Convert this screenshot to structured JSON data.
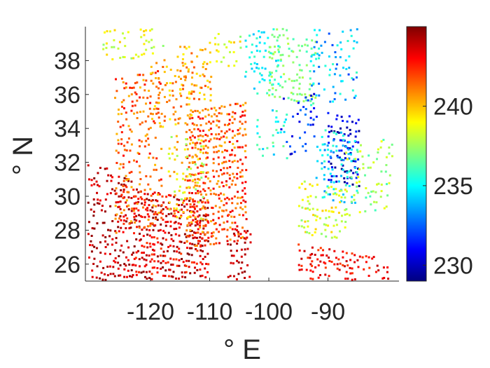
{
  "chart_data": {
    "type": "scatter",
    "title": "",
    "xlabel": "° E",
    "ylabel": "° N",
    "xlim": [
      -131,
      -78
    ],
    "ylim": [
      25,
      40
    ],
    "xticks": [
      {
        "value": -120,
        "label": "-120"
      },
      {
        "value": -110,
        "label": "-110"
      },
      {
        "value": -100,
        "label": "-100"
      },
      {
        "value": -90,
        "label": "-90"
      }
    ],
    "yticks": [
      {
        "value": 26,
        "label": "26"
      },
      {
        "value": 28,
        "label": "28"
      },
      {
        "value": 30,
        "label": "30"
      },
      {
        "value": 32,
        "label": "32"
      },
      {
        "value": 34,
        "label": "34"
      },
      {
        "value": 36,
        "label": "36"
      },
      {
        "value": 38,
        "label": "38"
      }
    ],
    "colorbar": {
      "colormap": "jet",
      "range": [
        229,
        245
      ],
      "ticks": [
        {
          "value": 230,
          "label": "230"
        },
        {
          "value": 235,
          "label": "235"
        },
        {
          "value": 240,
          "label": "240"
        }
      ]
    },
    "grid": false,
    "marker": "square",
    "clusters": [
      {
        "lon": [
          -123,
          -110
        ],
        "lat": [
          25,
          30.5
        ],
        "value": [
          242,
          245
        ],
        "density": 0.85
      },
      {
        "lon": [
          -114,
          -104
        ],
        "lat": [
          27,
          35
        ],
        "value": [
          240,
          243.5
        ],
        "density": 0.75
      },
      {
        "lon": [
          -131,
          -123
        ],
        "lat": [
          25,
          32
        ],
        "value": [
          243,
          245
        ],
        "density": 0.5
      },
      {
        "lon": [
          -126,
          -118
        ],
        "lat": [
          28,
          37
        ],
        "value": [
          240,
          243
        ],
        "density": 0.45
      },
      {
        "lon": [
          -117,
          -111
        ],
        "lat": [
          29,
          34
        ],
        "value": [
          237,
          241
        ],
        "density": 0.4
      },
      {
        "lon": [
          -120,
          -113
        ],
        "lat": [
          34,
          38
        ],
        "value": [
          239,
          242
        ],
        "density": 0.35
      },
      {
        "lon": [
          -115,
          -110
        ],
        "lat": [
          36,
          39
        ],
        "value": [
          239,
          242
        ],
        "density": 0.55
      },
      {
        "lon": [
          -128,
          -118
        ],
        "lat": [
          38,
          40
        ],
        "value": [
          237,
          240
        ],
        "density": 0.45
      },
      {
        "lon": [
          -110,
          -105
        ],
        "lat": [
          38,
          40
        ],
        "value": [
          237,
          240
        ],
        "density": 0.3
      },
      {
        "lon": [
          -104,
          -98
        ],
        "lat": [
          36,
          40
        ],
        "value": [
          234,
          236
        ],
        "density": 0.35
      },
      {
        "lon": [
          -100,
          -92
        ],
        "lat": [
          36,
          40
        ],
        "value": [
          236,
          238
        ],
        "density": 0.45
      },
      {
        "lon": [
          -93,
          -85
        ],
        "lat": [
          35.5,
          40
        ],
        "value": [
          232,
          236
        ],
        "density": 0.3
      },
      {
        "lon": [
          -90,
          -85
        ],
        "lat": [
          31,
          35
        ],
        "value": [
          229,
          232
        ],
        "density": 0.6
      },
      {
        "lon": [
          -98,
          -92
        ],
        "lat": [
          32.5,
          36
        ],
        "value": [
          230,
          233
        ],
        "density": 0.3
      },
      {
        "lon": [
          -92,
          -85
        ],
        "lat": [
          30,
          34
        ],
        "value": [
          233,
          236
        ],
        "density": 0.45
      },
      {
        "lon": [
          -103,
          -97
        ],
        "lat": [
          32,
          35
        ],
        "value": [
          234,
          237
        ],
        "density": 0.3
      },
      {
        "lon": [
          -95,
          -87
        ],
        "lat": [
          28,
          31
        ],
        "value": [
          237,
          240
        ],
        "density": 0.5
      },
      {
        "lon": [
          -87,
          -79
        ],
        "lat": [
          29,
          33
        ],
        "value": [
          236,
          239
        ],
        "density": 0.3
      },
      {
        "lon": [
          -95,
          -80
        ],
        "lat": [
          25,
          27.5
        ],
        "value": [
          242,
          244
        ],
        "density": 0.55
      },
      {
        "lon": [
          -107,
          -103
        ],
        "lat": [
          25,
          28
        ],
        "value": [
          243,
          245
        ],
        "density": 0.4
      }
    ]
  }
}
